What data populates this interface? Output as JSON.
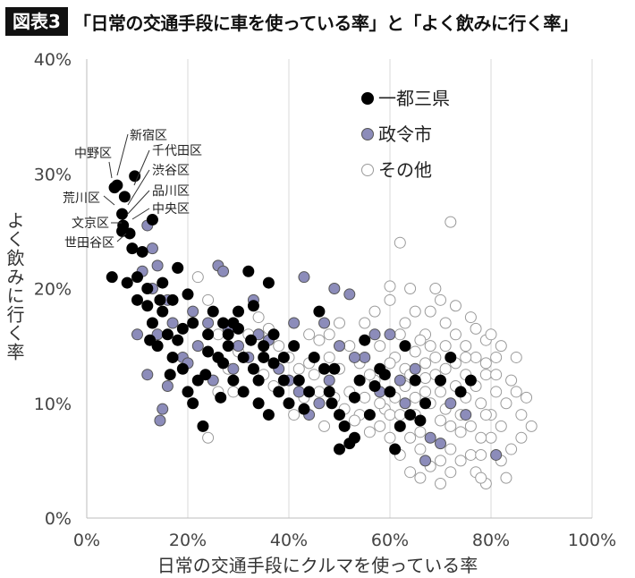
{
  "header": {
    "figure_label": "図表3",
    "title": "「日常の交通手段に車を使っている率」と「よく飲みに行く率」"
  },
  "chart_data": {
    "type": "scatter",
    "xlabel": "日常の交通手段にクルマを使っている率",
    "ylabel": "よく飲みに行く率",
    "xlim": [
      0,
      100
    ],
    "ylim": [
      0,
      40
    ],
    "x_ticks": [
      "0%",
      "20%",
      "40%",
      "60%",
      "80%",
      "100%"
    ],
    "y_ticks": [
      "0%",
      "10%",
      "20%",
      "30%",
      "40%"
    ],
    "grid": "vertical",
    "legend_position": "top-right",
    "colors": {
      "一都三県": "#000000",
      "政令市": "#8c8cba",
      "その他": "#ffffff"
    },
    "series": [
      {
        "name": "一都三県",
        "points": [
          [
            6,
            29
          ],
          [
            9.5,
            29.8
          ],
          [
            5.5,
            28.8
          ],
          [
            7.5,
            28
          ],
          [
            7,
            26.5
          ],
          [
            7.2,
            25.5
          ],
          [
            13,
            26
          ],
          [
            7,
            25
          ],
          [
            8.5,
            24.8
          ],
          [
            9,
            23.5
          ],
          [
            11,
            23.2
          ],
          [
            5,
            21
          ],
          [
            8,
            20.5
          ],
          [
            10,
            21
          ],
          [
            12,
            20
          ],
          [
            15,
            20.5
          ],
          [
            18,
            21.8
          ],
          [
            10,
            19
          ],
          [
            12,
            18.5
          ],
          [
            15,
            18
          ],
          [
            17,
            19
          ],
          [
            20,
            19.5
          ],
          [
            13,
            17
          ],
          [
            16,
            16
          ],
          [
            18,
            15.5
          ],
          [
            21,
            17
          ],
          [
            14,
            15
          ],
          [
            17,
            14
          ],
          [
            19,
            13
          ],
          [
            22,
            12
          ],
          [
            20,
            11
          ],
          [
            21,
            10
          ],
          [
            25,
            18
          ],
          [
            27,
            17
          ],
          [
            30,
            16.5
          ],
          [
            32,
            21.5
          ],
          [
            36,
            20.5
          ],
          [
            28,
            15
          ],
          [
            31,
            14
          ],
          [
            33,
            13
          ],
          [
            35,
            15
          ],
          [
            37,
            16
          ],
          [
            26,
            14
          ],
          [
            29,
            12
          ],
          [
            38,
            11
          ],
          [
            34,
            12
          ],
          [
            39,
            14
          ],
          [
            36,
            9
          ],
          [
            40,
            10
          ],
          [
            42,
            12
          ],
          [
            24,
            16
          ],
          [
            23,
            8
          ],
          [
            27,
            13.5
          ],
          [
            30,
            18
          ],
          [
            33,
            18.5
          ],
          [
            45,
            14
          ],
          [
            46,
            18
          ],
          [
            48,
            11
          ],
          [
            49,
            13
          ],
          [
            50,
            9
          ],
          [
            51,
            8
          ],
          [
            52,
            6.5
          ],
          [
            53,
            7
          ],
          [
            54,
            12
          ],
          [
            56,
            9
          ],
          [
            58,
            13
          ],
          [
            60,
            11
          ],
          [
            62,
            8
          ],
          [
            64,
            9
          ],
          [
            63,
            15
          ],
          [
            65,
            12
          ],
          [
            67,
            10
          ],
          [
            70,
            12
          ],
          [
            72,
            14
          ],
          [
            74,
            11
          ],
          [
            76,
            12
          ],
          [
            61,
            6
          ],
          [
            50,
            6
          ],
          [
            47,
            13
          ],
          [
            23.5,
            12.5
          ],
          [
            26.5,
            10.5
          ],
          [
            29,
            17
          ],
          [
            31,
            11
          ],
          [
            32.5,
            15.5
          ],
          [
            35,
            14
          ],
          [
            37,
            13.5
          ],
          [
            39,
            12
          ],
          [
            41,
            15
          ],
          [
            44,
            11
          ],
          [
            55,
            15.5
          ],
          [
            57,
            11.5
          ],
          [
            19,
            16.5
          ],
          [
            16.5,
            12.5
          ],
          [
            14.5,
            19
          ],
          [
            12.5,
            15.5
          ],
          [
            24,
            14.5
          ],
          [
            28,
            16
          ],
          [
            34,
            10
          ],
          [
            43,
            9.5
          ],
          [
            48.5,
            10
          ],
          [
            53,
            10.5
          ],
          [
            59,
            12.5
          ],
          [
            66,
            8.5
          ]
        ]
      },
      {
        "name": "政令市",
        "points": [
          [
            12,
            25.5
          ],
          [
            13,
            23.5
          ],
          [
            14,
            22
          ],
          [
            11,
            21.5
          ],
          [
            16,
            19
          ],
          [
            18,
            21.8
          ],
          [
            13,
            20
          ],
          [
            10,
            16
          ],
          [
            14,
            16
          ],
          [
            17,
            17
          ],
          [
            19,
            14
          ],
          [
            21,
            18
          ],
          [
            22,
            15
          ],
          [
            12,
            12.5
          ],
          [
            15,
            9.5
          ],
          [
            14.5,
            8.5
          ],
          [
            26,
            22
          ],
          [
            27,
            21.5
          ],
          [
            43,
            21
          ],
          [
            49,
            20
          ],
          [
            52,
            19.5
          ],
          [
            24,
            17
          ],
          [
            28,
            16.5
          ],
          [
            30,
            15
          ],
          [
            32,
            14
          ],
          [
            34,
            16
          ],
          [
            36,
            15.5
          ],
          [
            38,
            13
          ],
          [
            40,
            12
          ],
          [
            42,
            11
          ],
          [
            44,
            9
          ],
          [
            46,
            10
          ],
          [
            48,
            12
          ],
          [
            50,
            15
          ],
          [
            55,
            14
          ],
          [
            58,
            11
          ],
          [
            60,
            16
          ],
          [
            62,
            12
          ],
          [
            65,
            13
          ],
          [
            68,
            7
          ],
          [
            70,
            6.5
          ],
          [
            72,
            10
          ],
          [
            75,
            9
          ],
          [
            81,
            5.5
          ],
          [
            33,
            19
          ],
          [
            41,
            17
          ],
          [
            47,
            17
          ],
          [
            53,
            14
          ],
          [
            57,
            16
          ],
          [
            63,
            10
          ],
          [
            67,
            5
          ],
          [
            29,
            13
          ],
          [
            25,
            12
          ],
          [
            20,
            13.5
          ],
          [
            16,
            11.5
          ]
        ]
      },
      {
        "name": "その他",
        "points": [
          [
            72,
            25.8
          ],
          [
            62,
            24
          ],
          [
            69,
            20
          ],
          [
            70,
            19
          ],
          [
            57,
            18
          ],
          [
            60,
            19
          ],
          [
            63,
            17
          ],
          [
            65,
            18
          ],
          [
            67,
            16
          ],
          [
            68,
            15
          ],
          [
            71,
            17
          ],
          [
            73,
            16
          ],
          [
            75,
            15
          ],
          [
            77,
            14
          ],
          [
            79,
            15.5
          ],
          [
            80,
            16
          ],
          [
            82,
            15
          ],
          [
            84,
            12
          ],
          [
            85,
            11
          ],
          [
            86,
            9
          ],
          [
            88,
            8
          ],
          [
            78,
            10
          ],
          [
            80,
            7
          ],
          [
            82,
            5
          ],
          [
            83,
            3.5
          ],
          [
            79,
            3
          ],
          [
            77,
            4
          ],
          [
            74,
            5
          ],
          [
            72,
            6
          ],
          [
            70,
            5
          ],
          [
            68,
            4.5
          ],
          [
            66,
            6
          ],
          [
            64,
            7
          ],
          [
            62,
            5.5
          ],
          [
            60,
            7
          ],
          [
            58,
            8
          ],
          [
            56,
            7.5
          ],
          [
            54,
            9
          ],
          [
            52,
            11
          ],
          [
            50,
            13
          ],
          [
            48,
            14
          ],
          [
            46,
            15.5
          ],
          [
            44,
            16
          ],
          [
            42,
            13
          ],
          [
            40,
            14
          ],
          [
            38,
            15
          ],
          [
            36,
            16.5
          ],
          [
            34,
            17.5
          ],
          [
            32,
            16
          ],
          [
            30,
            14.5
          ],
          [
            28,
            13
          ],
          [
            26,
            11
          ],
          [
            24,
            7
          ],
          [
            24,
            19
          ],
          [
            22,
            21
          ],
          [
            26,
            16
          ],
          [
            29,
            11
          ],
          [
            35,
            12.5
          ],
          [
            37,
            11.5
          ],
          [
            41,
            9
          ],
          [
            43,
            10.5
          ],
          [
            45,
            12.5
          ],
          [
            47,
            8
          ],
          [
            49,
            10.5
          ],
          [
            51,
            9.5
          ],
          [
            53,
            8.5
          ],
          [
            55,
            10.5
          ],
          [
            57,
            12
          ],
          [
            59,
            9.5
          ],
          [
            61,
            10.5
          ],
          [
            63,
            11.5
          ],
          [
            65,
            9
          ],
          [
            67,
            11
          ],
          [
            69,
            12.5
          ],
          [
            71,
            13
          ],
          [
            73,
            11.5
          ],
          [
            75,
            12.5
          ],
          [
            77,
            11.5
          ],
          [
            79,
            12.5
          ],
          [
            81,
            11
          ],
          [
            83,
            10
          ],
          [
            61,
            14
          ],
          [
            63,
            13
          ],
          [
            65,
            14.5
          ],
          [
            67,
            13.5
          ],
          [
            69,
            14
          ],
          [
            71,
            15
          ],
          [
            73,
            13.5
          ],
          [
            75,
            14
          ],
          [
            77,
            16.5
          ],
          [
            79,
            13.5
          ],
          [
            62,
            16
          ],
          [
            66,
            15.5
          ],
          [
            70,
            11
          ],
          [
            74,
            9
          ],
          [
            76,
            8
          ],
          [
            78,
            7
          ],
          [
            80,
            9
          ],
          [
            82,
            8
          ],
          [
            84,
            6
          ],
          [
            86,
            7
          ],
          [
            66,
            3.5
          ],
          [
            64,
            4
          ],
          [
            70,
            3
          ],
          [
            72,
            4
          ],
          [
            76,
            5.5
          ],
          [
            78,
            5.5
          ],
          [
            60,
            9
          ],
          [
            58,
            10
          ],
          [
            56,
            12.5
          ],
          [
            54,
            13.5
          ],
          [
            52,
            15
          ],
          [
            50,
            17
          ],
          [
            48,
            16
          ],
          [
            46,
            11
          ],
          [
            44,
            13.5
          ],
          [
            55,
            17
          ],
          [
            58,
            15
          ],
          [
            60,
            13.5
          ],
          [
            64,
            12.5
          ],
          [
            68,
            10
          ],
          [
            72,
            8
          ],
          [
            74,
            7.5
          ],
          [
            62,
            9
          ],
          [
            66,
            7.5
          ],
          [
            70,
            8.5
          ],
          [
            60,
            20.2
          ],
          [
            64,
            20
          ],
          [
            68,
            18
          ],
          [
            73,
            18.5
          ],
          [
            76,
            17.5
          ],
          [
            81,
            14
          ],
          [
            85,
            14
          ],
          [
            78,
            3.5
          ],
          [
            87,
            10.5
          ],
          [
            67,
            12.2
          ],
          [
            65,
            10.5
          ],
          [
            71,
            9.5
          ],
          [
            75,
            10.5
          ],
          [
            79,
            9
          ],
          [
            81,
            12.5
          ]
        ]
      }
    ],
    "annotations": [
      {
        "label": "新宿区",
        "target": [
          9.5,
          29.8
        ]
      },
      {
        "label": "中野区",
        "target": [
          6,
          29
        ]
      },
      {
        "label": "千代田区",
        "target": [
          7.5,
          28
        ]
      },
      {
        "label": "渋谷区",
        "target": [
          7,
          26.5
        ]
      },
      {
        "label": "荒川区",
        "target": [
          7,
          26.5
        ]
      },
      {
        "label": "品川区",
        "target": [
          7.2,
          25.5
        ]
      },
      {
        "label": "中央区",
        "target": [
          8.5,
          24.8
        ]
      },
      {
        "label": "文京区",
        "target": [
          7,
          25
        ]
      },
      {
        "label": "世田谷区",
        "target": [
          9,
          23.5
        ]
      }
    ]
  }
}
